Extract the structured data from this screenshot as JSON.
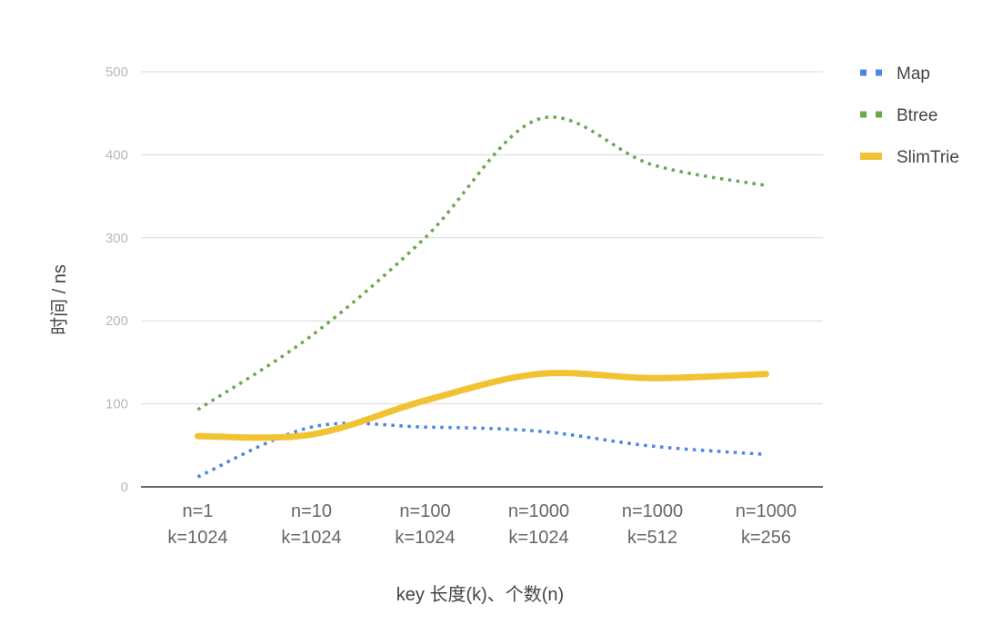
{
  "chart_data": {
    "type": "line",
    "xlabel": "key 长度(k)、个数(n)",
    "ylabel": "时间 / ns",
    "ylim": [
      0,
      500
    ],
    "yticks": [
      0,
      100,
      200,
      300,
      400,
      500
    ],
    "categories": [
      [
        "n=1",
        "k=1024"
      ],
      [
        "n=10",
        "k=1024"
      ],
      [
        "n=100",
        "k=1024"
      ],
      [
        "n=1000",
        "k=1024"
      ],
      [
        "n=1000",
        "k=512"
      ],
      [
        "n=1000",
        "k=256"
      ]
    ],
    "series": [
      {
        "name": "Map",
        "values": [
          12,
          72,
          72,
          67,
          49,
          39
        ],
        "color": "#4a86e8",
        "style": "dotted"
      },
      {
        "name": "Btree",
        "values": [
          93,
          182,
          300,
          443,
          388,
          363
        ],
        "color": "#6aa84f",
        "style": "dotted"
      },
      {
        "name": "SlimTrie",
        "values": [
          61,
          63,
          104,
          136,
          131,
          136
        ],
        "color": "#f1c232",
        "style": "solid"
      }
    ],
    "grid": true,
    "legend": "right"
  }
}
